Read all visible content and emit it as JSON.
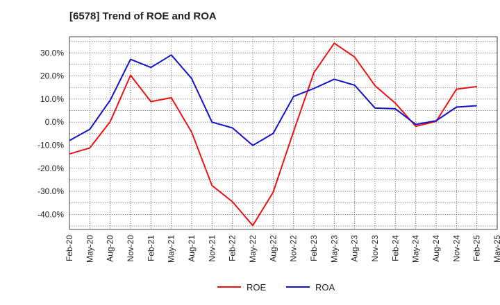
{
  "chart_data": {
    "type": "line",
    "title": "[6578]  Trend of ROE and ROA",
    "xlabel": "",
    "ylabel": "",
    "x": [
      "Feb-20",
      "May-20",
      "Aug-20",
      "Nov-20",
      "Feb-21",
      "May-21",
      "Aug-21",
      "Nov-21",
      "Feb-22",
      "May-22",
      "Aug-22",
      "Nov-22",
      "Feb-23",
      "May-23",
      "Aug-23",
      "Nov-23",
      "Feb-24",
      "May-24",
      "Aug-24",
      "Nov-24",
      "Feb-25",
      "May-25"
    ],
    "y_ticks": [
      "30.0%",
      "20.0%",
      "10.0%",
      "0.0%",
      "-10.0%",
      "-20.0%",
      "-30.0%",
      "-40.0%"
    ],
    "y_tick_values": [
      30,
      20,
      10,
      0,
      -10,
      -20,
      -30,
      -40
    ],
    "ylim": [
      -46.5,
      37.0
    ],
    "grid": true,
    "legend_position": "bottom",
    "series": [
      {
        "name": "ROE",
        "color": "#ee1111",
        "values": [
          -13.8,
          -11.2,
          0.2,
          20.3,
          8.9,
          10.6,
          -4.4,
          -27.5,
          -34.5,
          -44.8,
          -30.4,
          -4.1,
          21.4,
          34.2,
          28.2,
          15.8,
          8.2,
          -1.8,
          0.3,
          14.3,
          15.4,
          null
        ]
      },
      {
        "name": "ROA",
        "color": "#1111cc",
        "values": [
          -8.0,
          -3.1,
          9.5,
          27.2,
          23.7,
          29.1,
          18.9,
          0.0,
          -2.5,
          -10.1,
          -4.9,
          11.1,
          14.6,
          18.6,
          16.0,
          6.1,
          5.8,
          -1.0,
          0.6,
          6.5,
          7.1,
          null
        ]
      }
    ]
  }
}
